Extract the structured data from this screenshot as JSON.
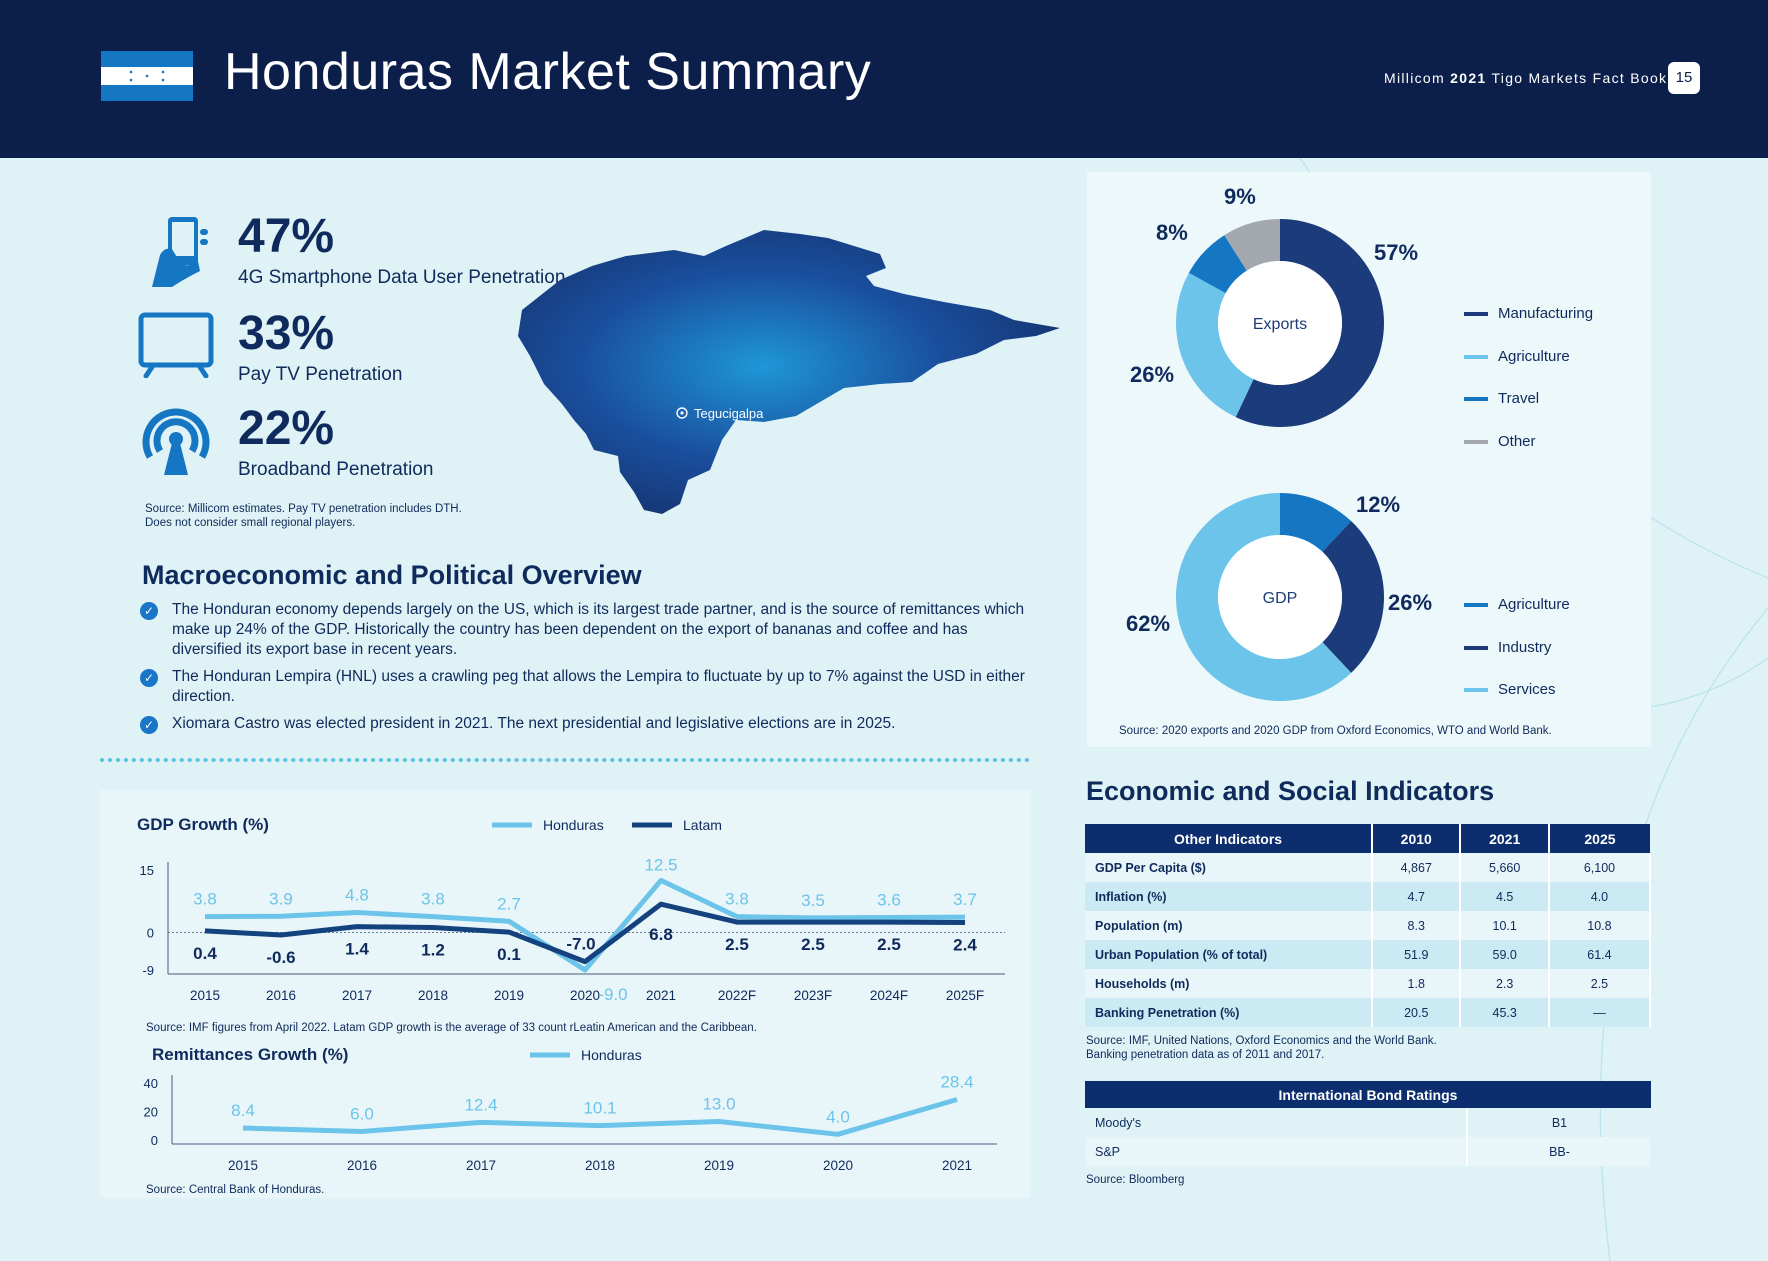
{
  "header": {
    "title": "Honduras Market Summary",
    "fact_prefix": "Millicom ",
    "fact_year": "2021",
    "fact_suffix": " Tigo Markets Fact Book",
    "page_number": "15"
  },
  "stats": [
    {
      "value": "47%",
      "label": "4G Smartphone Data User Penetration",
      "icon": "smartphone-hand-icon"
    },
    {
      "value": "33%",
      "label": "Pay TV Penetration",
      "icon": "tv-icon"
    },
    {
      "value": "22%",
      "label": "Broadband Penetration",
      "icon": "broadband-signal-icon"
    }
  ],
  "stats_source": [
    "Source: Millicom estimates. Pay TV penetration includes DTH.",
    "Does not consider small regional players."
  ],
  "map": {
    "city": "Tegucigalpa"
  },
  "macro": {
    "heading": "Macroeconomic and Political Overview",
    "bullets": [
      "The Honduran economy depends largely on the US, which is its largest trade partner, and is the source of remittances which make up 24% of the GDP. Historically the country has been dependent on the export of bananas and coffee and has diversified its export base in recent years.",
      "The Honduran Lempira (HNL) uses a crawling peg that allows the Lempira to fluctuate by up to 7% against the USD in either direction.",
      "Xiomara Castro was elected president in 2021. The next presidential and legislative elections are in 2025."
    ]
  },
  "exports_pie": {
    "center": "Exports",
    "slices": [
      {
        "name": "Manufacturing",
        "value": 57,
        "label": "57%",
        "color": "#1b3b7a"
      },
      {
        "name": "Agriculture",
        "value": 26,
        "label": "26%",
        "color": "#6cc4ea"
      },
      {
        "name": "Travel",
        "value": 8,
        "label": "8%",
        "color": "#1576c4"
      },
      {
        "name": "Other",
        "value": 9,
        "label": "9%",
        "color": "#a3a8ae"
      }
    ]
  },
  "gdp_pie": {
    "center": "GDP",
    "slices": [
      {
        "name": "Agriculture",
        "value": 12,
        "label": "12%",
        "color": "#1576c4"
      },
      {
        "name": "Industry",
        "value": 26,
        "label": "26%",
        "color": "#1b3b7a"
      },
      {
        "name": "Services",
        "value": 62,
        "label": "62%",
        "color": "#6cc4ea"
      }
    ]
  },
  "pie_source": "Source: 2020 exports and 2020 GDP from Oxford Economics, WTO and World Bank.",
  "chart_data": [
    {
      "type": "line",
      "title": "GDP Growth (%)",
      "x": [
        "2015",
        "2016",
        "2017",
        "2018",
        "2019",
        "2020",
        "2021",
        "2022F",
        "2023F",
        "2024F",
        "2025F"
      ],
      "yticks": [
        "15",
        "0",
        "-9"
      ],
      "ylim": [
        -9,
        15
      ],
      "series": [
        {
          "name": "Honduras",
          "color": "#6cc4ea",
          "values": [
            3.8,
            3.9,
            4.8,
            3.8,
            2.7,
            -9.0,
            12.5,
            3.8,
            3.5,
            3.6,
            3.7
          ],
          "labels": [
            "3.8",
            "3.9",
            "4.8",
            "3.8",
            "2.7",
            "-9.0",
            "12.5",
            "3.8",
            "3.5",
            "3.6",
            "3.7"
          ]
        },
        {
          "name": "Latam",
          "color": "#13427e",
          "values": [
            0.4,
            -0.6,
            1.4,
            1.2,
            0.1,
            -7.0,
            6.8,
            2.5,
            2.5,
            2.5,
            2.4
          ],
          "labels": [
            "0.4",
            "-0.6",
            "1.4",
            "1.2",
            "0.1",
            "-7.0",
            "6.8",
            "2.5",
            "2.5",
            "2.5",
            "2.4"
          ]
        }
      ],
      "source": "Source: IMF figures from April 2022. Latam GDP growth is the average of 33 count     rLeatin American and the Caribbean."
    },
    {
      "type": "line",
      "title": "Remittances Growth (%)",
      "x": [
        "2015",
        "2016",
        "2017",
        "2018",
        "2019",
        "2020",
        "2021"
      ],
      "yticks": [
        "40",
        "20",
        "0"
      ],
      "ylim": [
        0,
        40
      ],
      "series": [
        {
          "name": "Honduras",
          "color": "#6cc4ea",
          "values": [
            8.4,
            6.0,
            12.4,
            10.1,
            13.0,
            4.0,
            28.4
          ],
          "labels": [
            "8.4",
            "6.0",
            "12.4",
            "10.1",
            "13.0",
            "4.0",
            "28.4"
          ]
        }
      ],
      "source": "Source: Central Bank of Honduras."
    }
  ],
  "indicators": {
    "heading": "Economic and Social Indicators",
    "columns": [
      "Other Indicators",
      "2010",
      "2021",
      "2025"
    ],
    "rows": [
      [
        "GDP Per Capita ($)",
        "4,867",
        "5,660",
        "6,100"
      ],
      [
        "Inflation (%)",
        "4.7",
        "4.5",
        "4.0"
      ],
      [
        "Population (m)",
        "8.3",
        "10.1",
        "10.8"
      ],
      [
        "Urban Population (% of total)",
        "51.9",
        "59.0",
        "61.4"
      ],
      [
        "Households (m)",
        "1.8",
        "2.3",
        "2.5"
      ],
      [
        "Banking Penetration (%)",
        "20.5",
        "45.3",
        "—"
      ]
    ],
    "source": [
      "Source: IMF, United Nations, Oxford Economics and the World Bank.",
      "Banking penetration data as of 2011 and 2017."
    ]
  },
  "bonds": {
    "heading": "International Bond Ratings",
    "rows": [
      [
        "Moody's",
        "B1"
      ],
      [
        "S&P",
        "BB-"
      ]
    ],
    "source": "Source: Bloomberg"
  }
}
